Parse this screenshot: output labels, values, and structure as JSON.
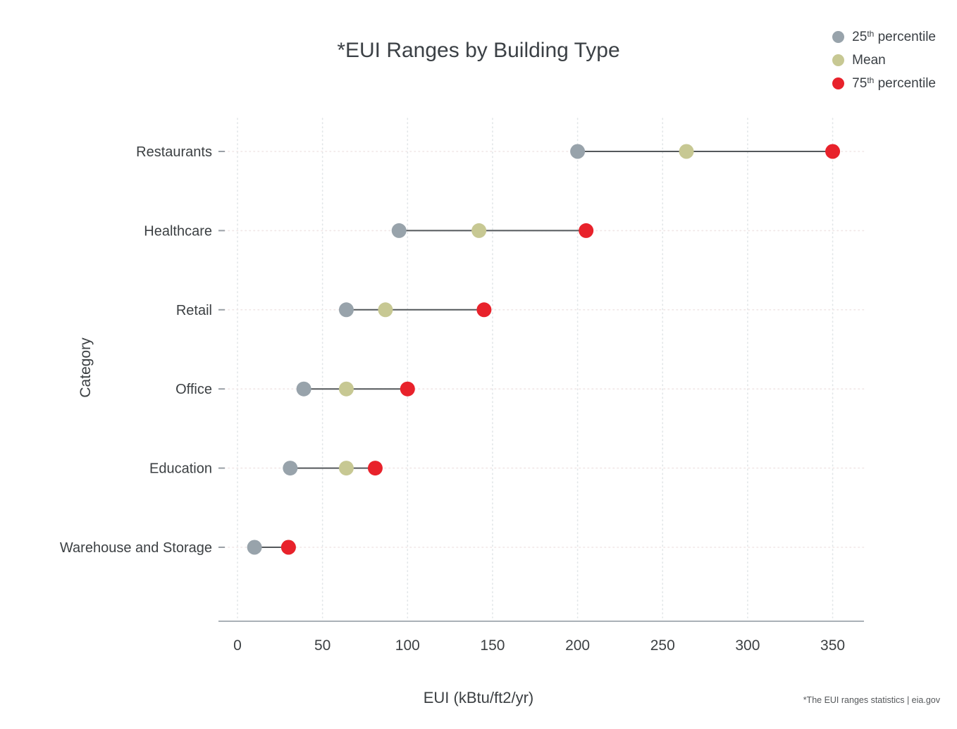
{
  "title": "*EUI Ranges by Building Type",
  "footnote": "*The EUI ranges statistics | eia.gov",
  "legend": {
    "items": [
      {
        "num": "25",
        "sup": "th",
        "rest": " percentile",
        "color": "#98a3ab"
      },
      {
        "num": "Mean",
        "sup": "",
        "rest": "",
        "color": "#c7c893"
      },
      {
        "num": "75",
        "sup": "th",
        "rest": " percentile",
        "color": "#e8222b"
      }
    ]
  },
  "axes": {
    "x_label": "EUI (kBtu/ft2/yr)",
    "y_label": "Category",
    "x_ticks": [
      0,
      50,
      100,
      150,
      200,
      250,
      300,
      350
    ]
  },
  "chart_data": {
    "type": "scatter",
    "subtype": "dumbbell-range-plot",
    "title": "*EUI Ranges by Building Type",
    "xlabel": "EUI (kBtu/ft2/yr)",
    "ylabel": "Category",
    "xlim": [
      0,
      350
    ],
    "x_ticks": [
      0,
      50,
      100,
      150,
      200,
      250,
      300,
      350
    ],
    "grid": true,
    "legend_position": "top-right",
    "categories": [
      "Restaurants",
      "Healthcare",
      "Retail",
      "Office",
      "Education",
      "Warehouse and Storage"
    ],
    "series": [
      {
        "name": "25th percentile",
        "color": "#98a3ab",
        "values": [
          200,
          95,
          64,
          39,
          31,
          10
        ]
      },
      {
        "name": "Mean",
        "color": "#c7c893",
        "values": [
          264,
          142,
          87,
          64,
          64,
          30
        ]
      },
      {
        "name": "75th percentile",
        "color": "#e8222b",
        "values": [
          350,
          205,
          145,
          100,
          81,
          30
        ]
      }
    ]
  }
}
